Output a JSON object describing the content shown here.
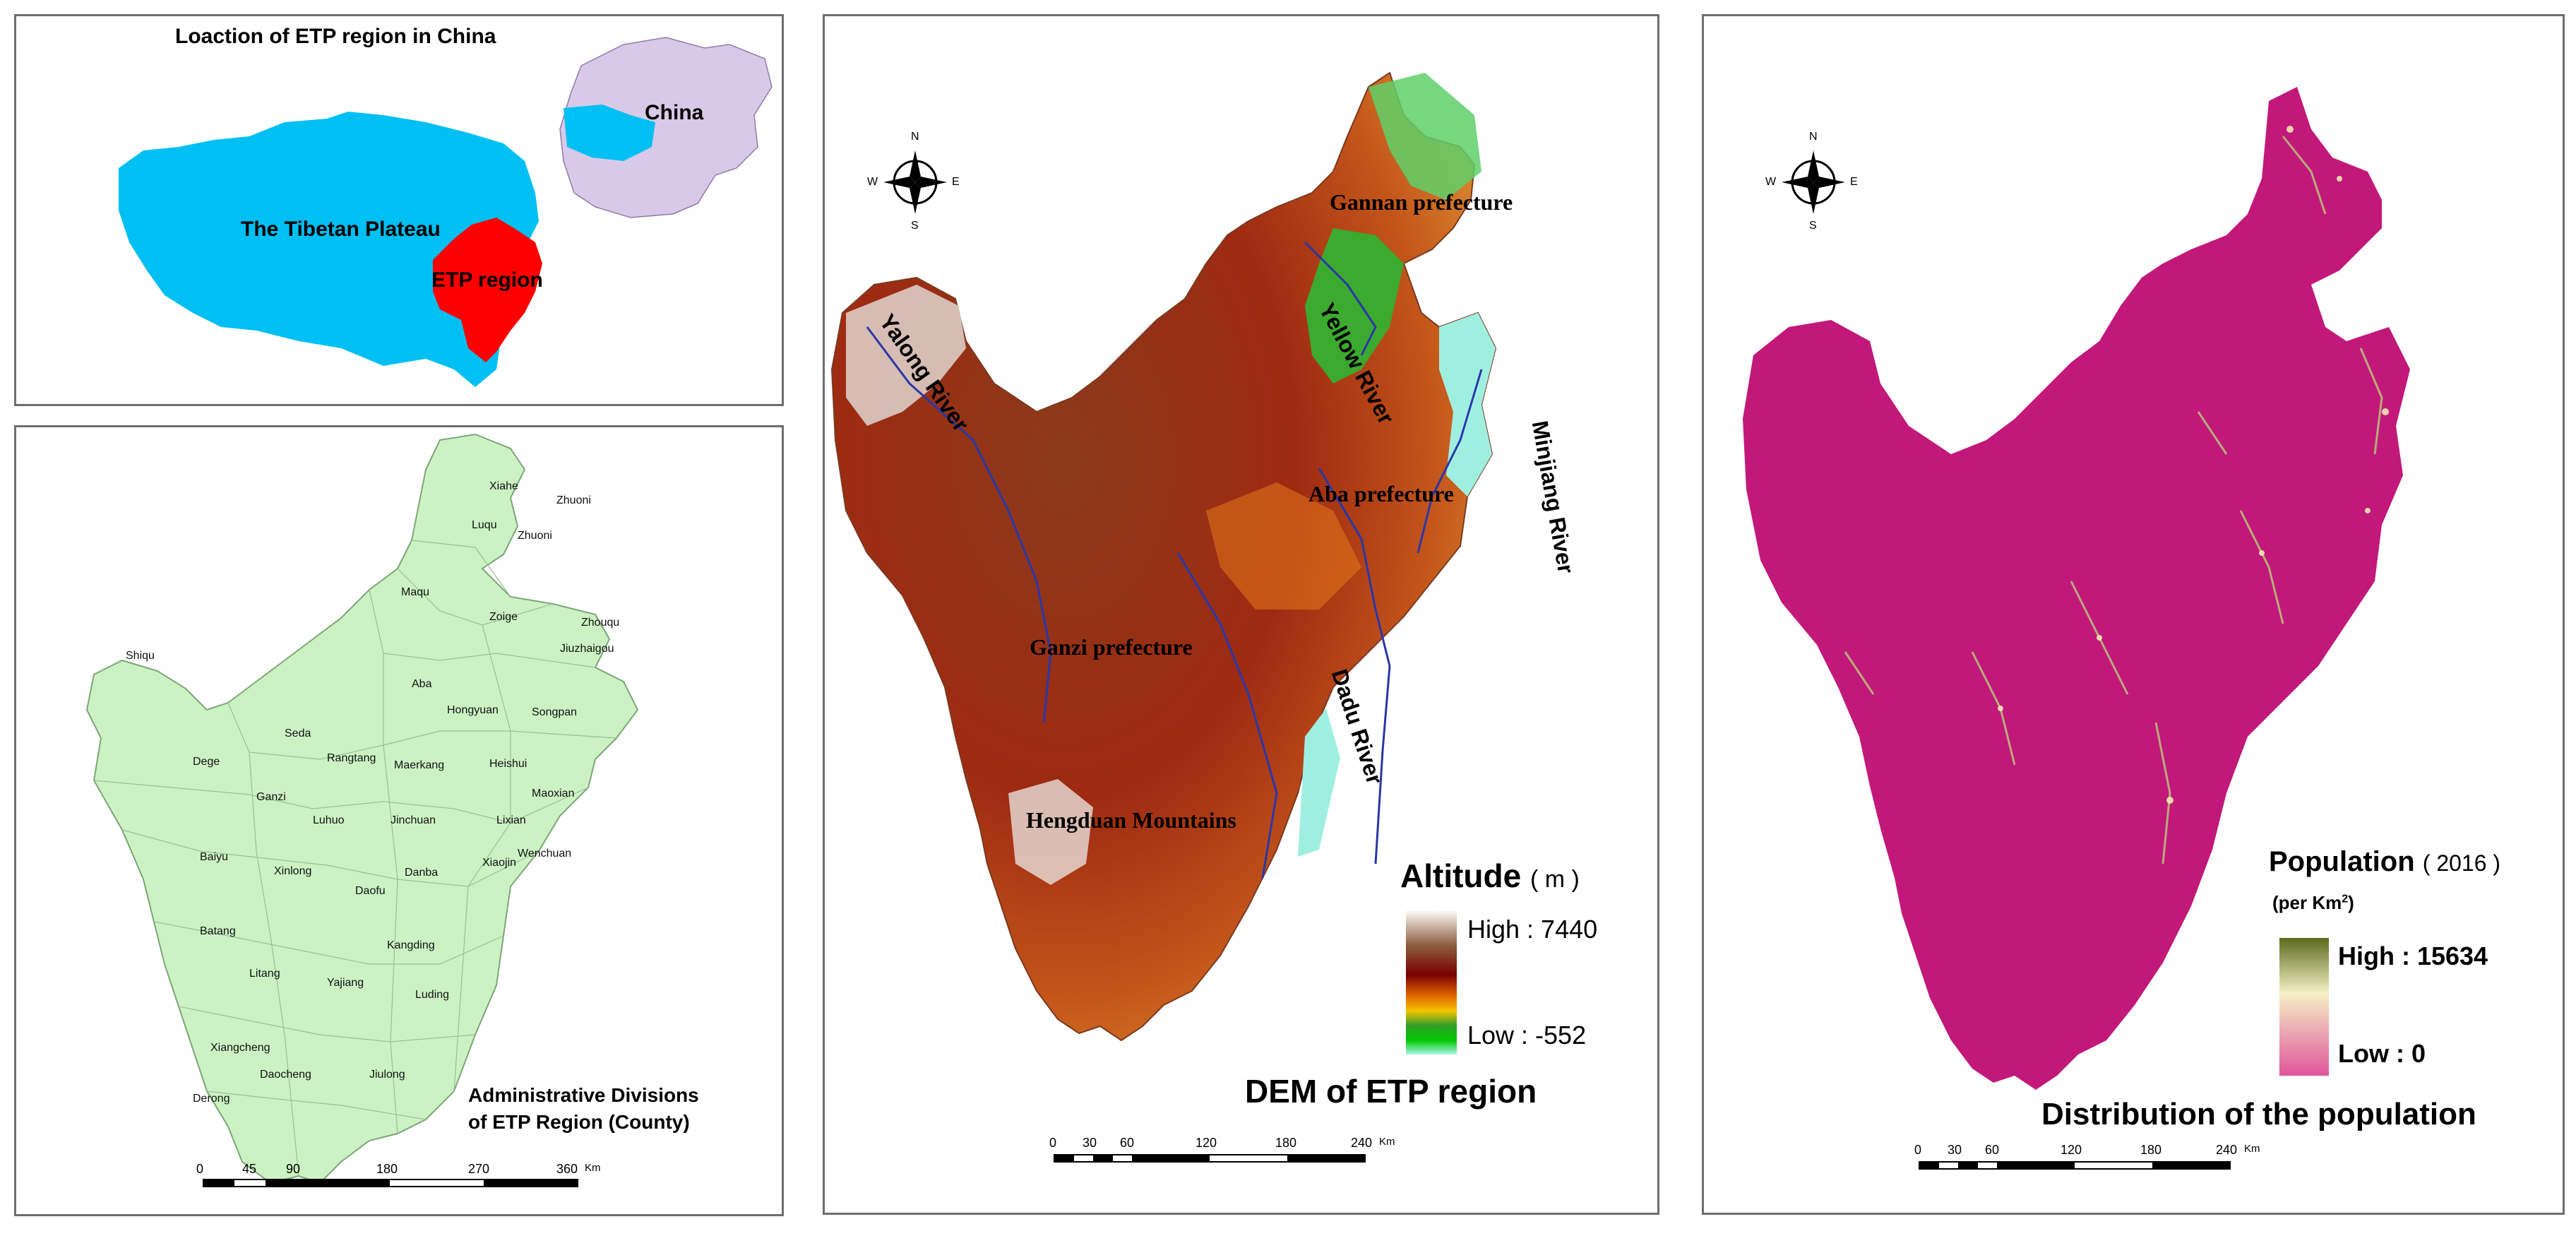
{
  "panels": {
    "location": {
      "title": "Loaction of ETP region in China",
      "labels": {
        "china": "China",
        "plateau": "The Tibetan Plateau",
        "etp": "ETP region"
      },
      "colors": {
        "plateau": "#00BFF3",
        "etp": "#FF0000",
        "china": "#D9C9E8"
      }
    },
    "admin": {
      "title_line1": "Administrative Divisions",
      "title_line2": "of ETP Region  (County)",
      "fill": "#CCF2C4",
      "counties": [
        {
          "name": "Xiahe"
        },
        {
          "name": "Zhuoni"
        },
        {
          "name": "Luqu"
        },
        {
          "name": "Zhuoni"
        },
        {
          "name": "Maqu"
        },
        {
          "name": "Zoige"
        },
        {
          "name": "Zhouqu"
        },
        {
          "name": "Jiuzhaigou"
        },
        {
          "name": "Shiqu"
        },
        {
          "name": "Aba"
        },
        {
          "name": "Hongyuan"
        },
        {
          "name": "Songpan"
        },
        {
          "name": "Seda"
        },
        {
          "name": "Dege"
        },
        {
          "name": "Rangtang"
        },
        {
          "name": "Maerkang"
        },
        {
          "name": "Heishui"
        },
        {
          "name": "Ganzi"
        },
        {
          "name": "Maoxian"
        },
        {
          "name": "Luhuo"
        },
        {
          "name": "Jinchuan"
        },
        {
          "name": "Lixian"
        },
        {
          "name": "Baiyu"
        },
        {
          "name": "Xinlong"
        },
        {
          "name": "Danba"
        },
        {
          "name": "Xiaojin"
        },
        {
          "name": "Wenchuan"
        },
        {
          "name": "Daofu"
        },
        {
          "name": "Batang"
        },
        {
          "name": "Kangding"
        },
        {
          "name": "Litang"
        },
        {
          "name": "Yajiang"
        },
        {
          "name": "Luding"
        },
        {
          "name": "Xiangcheng"
        },
        {
          "name": "Daocheng"
        },
        {
          "name": "Jiulong"
        },
        {
          "name": "Derong"
        }
      ],
      "scale": {
        "ticks": [
          "0",
          "45",
          "90",
          "180",
          "270",
          "360"
        ],
        "unit": "Km"
      }
    },
    "dem": {
      "title": "DEM of ETP region",
      "labels": {
        "gannan": "Gannan prefecture",
        "yellow_river": "Yellow River",
        "yalong_river": "Yalong River",
        "minjiang_river": "Minjiang River",
        "aba": "Aba prefecture",
        "ganzi": "Ganzi prefecture",
        "dadu_river": "Dadu River",
        "hengduan": "Hengduan Mountains"
      },
      "legend": {
        "title": "Altitude",
        "unit": "( m )",
        "high": "High : 7440",
        "low": "Low : -552"
      },
      "compass": {
        "n": "N",
        "s": "S",
        "e": "E",
        "w": "W"
      },
      "scale": {
        "ticks": [
          "0",
          "30",
          "60",
          "120",
          "180",
          "240"
        ],
        "unit": "Km"
      }
    },
    "population": {
      "title": "Distribution of the population",
      "fill": "#C2187A",
      "legend": {
        "title": "Population",
        "year": "( 2016 )",
        "unit": "(per Km",
        "unit_sup": "2",
        "unit_close": ")",
        "high": "High : 15634",
        "low": "Low : 0"
      },
      "compass": {
        "n": "N",
        "s": "S",
        "e": "E",
        "w": "W"
      },
      "scale": {
        "ticks": [
          "0",
          "30",
          "60",
          "120",
          "180",
          "240"
        ],
        "unit": "Km"
      }
    }
  }
}
